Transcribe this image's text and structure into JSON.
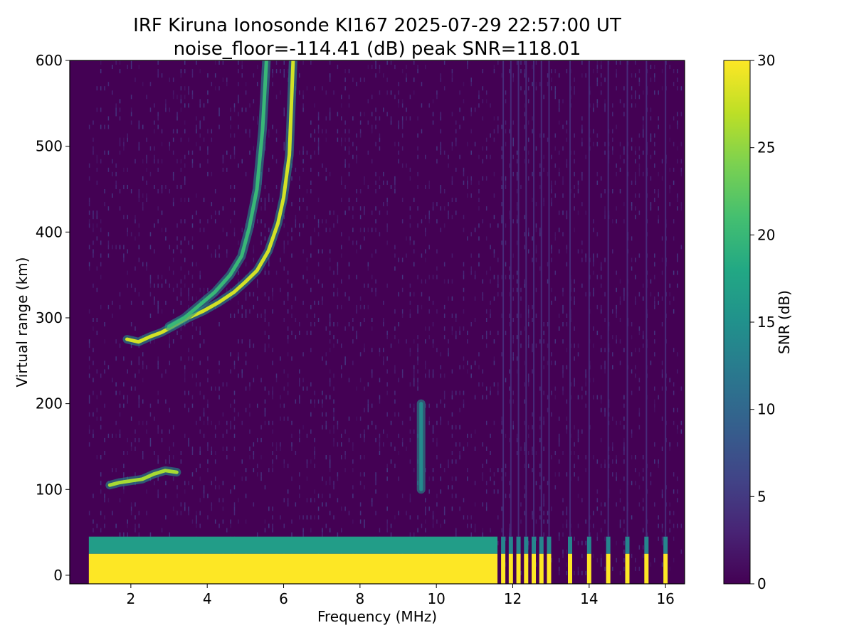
{
  "chart_data": {
    "type": "heatmap",
    "title_line1": "IRF Kiruna Ionosonde KI167 2025-07-29 22:57:00  UT",
    "title_line2": "noise_floor=-114.41 (dB) peak SNR=118.01",
    "xlabel": "Frequency (MHz)",
    "ylabel": "Virtual range (km)",
    "xlim": [
      0.4,
      16.5
    ],
    "ylim": [
      -10,
      600
    ],
    "xticks": [
      2,
      4,
      6,
      8,
      10,
      12,
      14,
      16
    ],
    "xtick_labels": [
      "2",
      "4",
      "6",
      "8",
      "10",
      "12",
      "14",
      "16"
    ],
    "yticks": [
      0,
      100,
      200,
      300,
      400,
      500,
      600
    ],
    "ytick_labels": [
      "0",
      "100",
      "200",
      "300",
      "400",
      "500",
      "600"
    ],
    "colorbar": {
      "label": "SNR (dB)",
      "colormap": "viridis",
      "range": [
        0,
        30
      ],
      "ticks": [
        0,
        5,
        10,
        15,
        20,
        25,
        30
      ],
      "tick_labels": [
        "0",
        "5",
        "10",
        "15",
        "20",
        "25",
        "30"
      ]
    },
    "data_frequency_range_mhz": [
      0.9,
      16.4
    ],
    "ground_clutter": {
      "continuous_band": {
        "freq_mhz": [
          0.9,
          11.6
        ],
        "range_km": [
          0,
          25
        ],
        "snr_db": 30
      },
      "fringe_top_km": 45,
      "discrete_channels_mhz": [
        11.75,
        11.95,
        12.15,
        12.35,
        12.55,
        12.75,
        12.95,
        13.5,
        14.0,
        14.5,
        15.0,
        15.5,
        16.0
      ]
    },
    "traces": [
      {
        "name": "E layer echo",
        "points": [
          [
            1.45,
            105
          ],
          [
            1.7,
            108
          ],
          [
            2.0,
            110
          ],
          [
            2.3,
            112
          ],
          [
            2.6,
            118
          ],
          [
            2.9,
            122
          ],
          [
            3.2,
            120
          ]
        ],
        "snr_db": 26
      },
      {
        "name": "F layer o-mode",
        "points": [
          [
            1.9,
            275
          ],
          [
            2.2,
            272
          ],
          [
            2.5,
            278
          ],
          [
            2.8,
            283
          ],
          [
            3.1,
            290
          ],
          [
            3.5,
            300
          ],
          [
            3.9,
            308
          ],
          [
            4.3,
            318
          ],
          [
            4.7,
            330
          ],
          [
            5.0,
            342
          ],
          [
            5.3,
            355
          ],
          [
            5.6,
            378
          ],
          [
            5.85,
            410
          ],
          [
            6.0,
            440
          ],
          [
            6.15,
            490
          ],
          [
            6.25,
            600
          ]
        ],
        "snr_db": 28
      },
      {
        "name": "F layer x-mode",
        "points": [
          [
            3.0,
            290
          ],
          [
            3.4,
            300
          ],
          [
            3.8,
            315
          ],
          [
            4.2,
            330
          ],
          [
            4.6,
            350
          ],
          [
            4.9,
            372
          ],
          [
            5.1,
            405
          ],
          [
            5.3,
            450
          ],
          [
            5.45,
            520
          ],
          [
            5.55,
            600
          ]
        ],
        "snr_db": 20
      },
      {
        "name": "spread echo",
        "points": [
          [
            9.6,
            200
          ],
          [
            9.6,
            100
          ]
        ],
        "snr_db": 14
      }
    ]
  }
}
